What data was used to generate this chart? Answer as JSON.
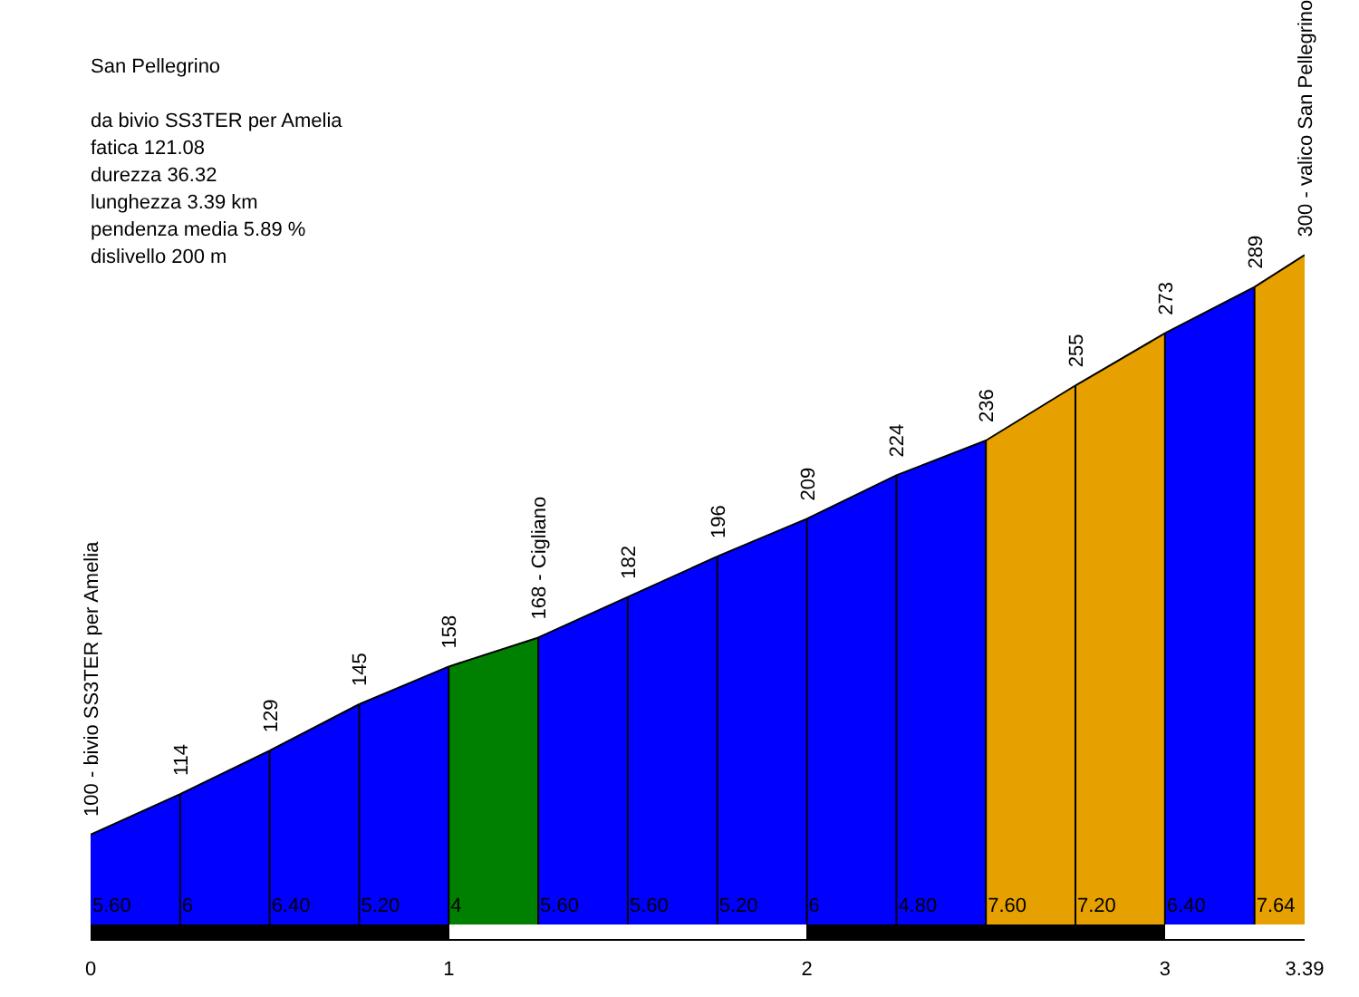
{
  "chart_data": {
    "type": "area",
    "title": "San Pellegrino",
    "subtitle": "da bivio SS3TER per Amelia",
    "annotations": [
      "fatica 121.08",
      "durezza 36.32",
      "lunghezza 3.39 km",
      "pendenza media 5.89 %",
      "dislivello 200 m",
      {
        "text": "5.60",
        "x": 0
      },
      {
        "text": "6",
        "x": 0.25
      },
      {
        "text": "6.40",
        "x": 0.5
      },
      {
        "text": "5.20",
        "x": 0.75
      },
      {
        "text": "4",
        "x": 1
      },
      {
        "text": "5.60",
        "x": 1.25
      },
      {
        "text": "5.60",
        "x": 1.5
      },
      {
        "text": "5.20",
        "x": 1.75
      },
      {
        "text": "6",
        "x": 2
      },
      {
        "text": "4.80",
        "x": 2.25
      },
      {
        "text": "7.60",
        "x": 2.5
      },
      {
        "text": "7.20",
        "x": 2.75
      },
      {
        "text": "6.40",
        "x": 3
      },
      {
        "text": "7.64",
        "x": 3.25
      }
    ],
    "xlim": [
      0,
      3.39
    ],
    "xticks": [
      0,
      1,
      2,
      3,
      3.39
    ],
    "ylim": [
      69,
      388
    ],
    "tick_labels": "x",
    "grid": false,
    "legend": false,
    "series": [
      {
        "color": "#0000ff",
        "x": [
          0,
          0.25
        ],
        "values": [
          100,
          114
        ],
        "value_labels": [
          "100 - bivio SS3TER per Amelia",
          null
        ]
      },
      {
        "color": "#0000ff",
        "x": [
          0.25,
          0.5
        ],
        "values": [
          114,
          129
        ],
        "value_labels": [
          "114",
          null
        ]
      },
      {
        "color": "#0000ff",
        "x": [
          0.5,
          0.75
        ],
        "values": [
          129,
          145
        ],
        "value_labels": [
          "129",
          null
        ]
      },
      {
        "color": "#0000ff",
        "x": [
          0.75,
          1
        ],
        "values": [
          145,
          158
        ],
        "value_labels": [
          "145",
          null
        ]
      },
      {
        "color": "#008000",
        "x": [
          1,
          1.25
        ],
        "values": [
          158,
          168
        ],
        "value_labels": [
          "158",
          null
        ]
      },
      {
        "color": "#0000ff",
        "x": [
          1.25,
          1.5
        ],
        "values": [
          168,
          182
        ],
        "value_labels": [
          "168 - Cigliano",
          null
        ]
      },
      {
        "color": "#0000ff",
        "x": [
          1.5,
          1.75
        ],
        "values": [
          182,
          196
        ],
        "value_labels": [
          "182",
          null
        ]
      },
      {
        "color": "#0000ff",
        "x": [
          1.75,
          2
        ],
        "values": [
          196,
          209
        ],
        "value_labels": [
          "196",
          null
        ]
      },
      {
        "color": "#0000ff",
        "x": [
          2,
          2.25
        ],
        "values": [
          209,
          224
        ],
        "value_labels": [
          "209",
          null
        ]
      },
      {
        "color": "#0000ff",
        "x": [
          2.25,
          2.5
        ],
        "values": [
          224,
          236
        ],
        "value_labels": [
          "224",
          null
        ]
      },
      {
        "color": "#e6a000",
        "x": [
          2.5,
          2.75
        ],
        "values": [
          236,
          255
        ],
        "value_labels": [
          "236",
          null
        ]
      },
      {
        "color": "#e6a000",
        "x": [
          2.75,
          3
        ],
        "values": [
          255,
          273
        ],
        "value_labels": [
          "255",
          null
        ]
      },
      {
        "color": "#0000ff",
        "x": [
          3,
          3.25
        ],
        "values": [
          273,
          289
        ],
        "value_labels": [
          "273",
          null
        ]
      },
      {
        "color": "#e6a000",
        "x": [
          3.25,
          3.39
        ],
        "values": [
          289,
          300
        ],
        "value_labels": [
          "289",
          "300 - valico San Pellegrino"
        ]
      }
    ]
  }
}
